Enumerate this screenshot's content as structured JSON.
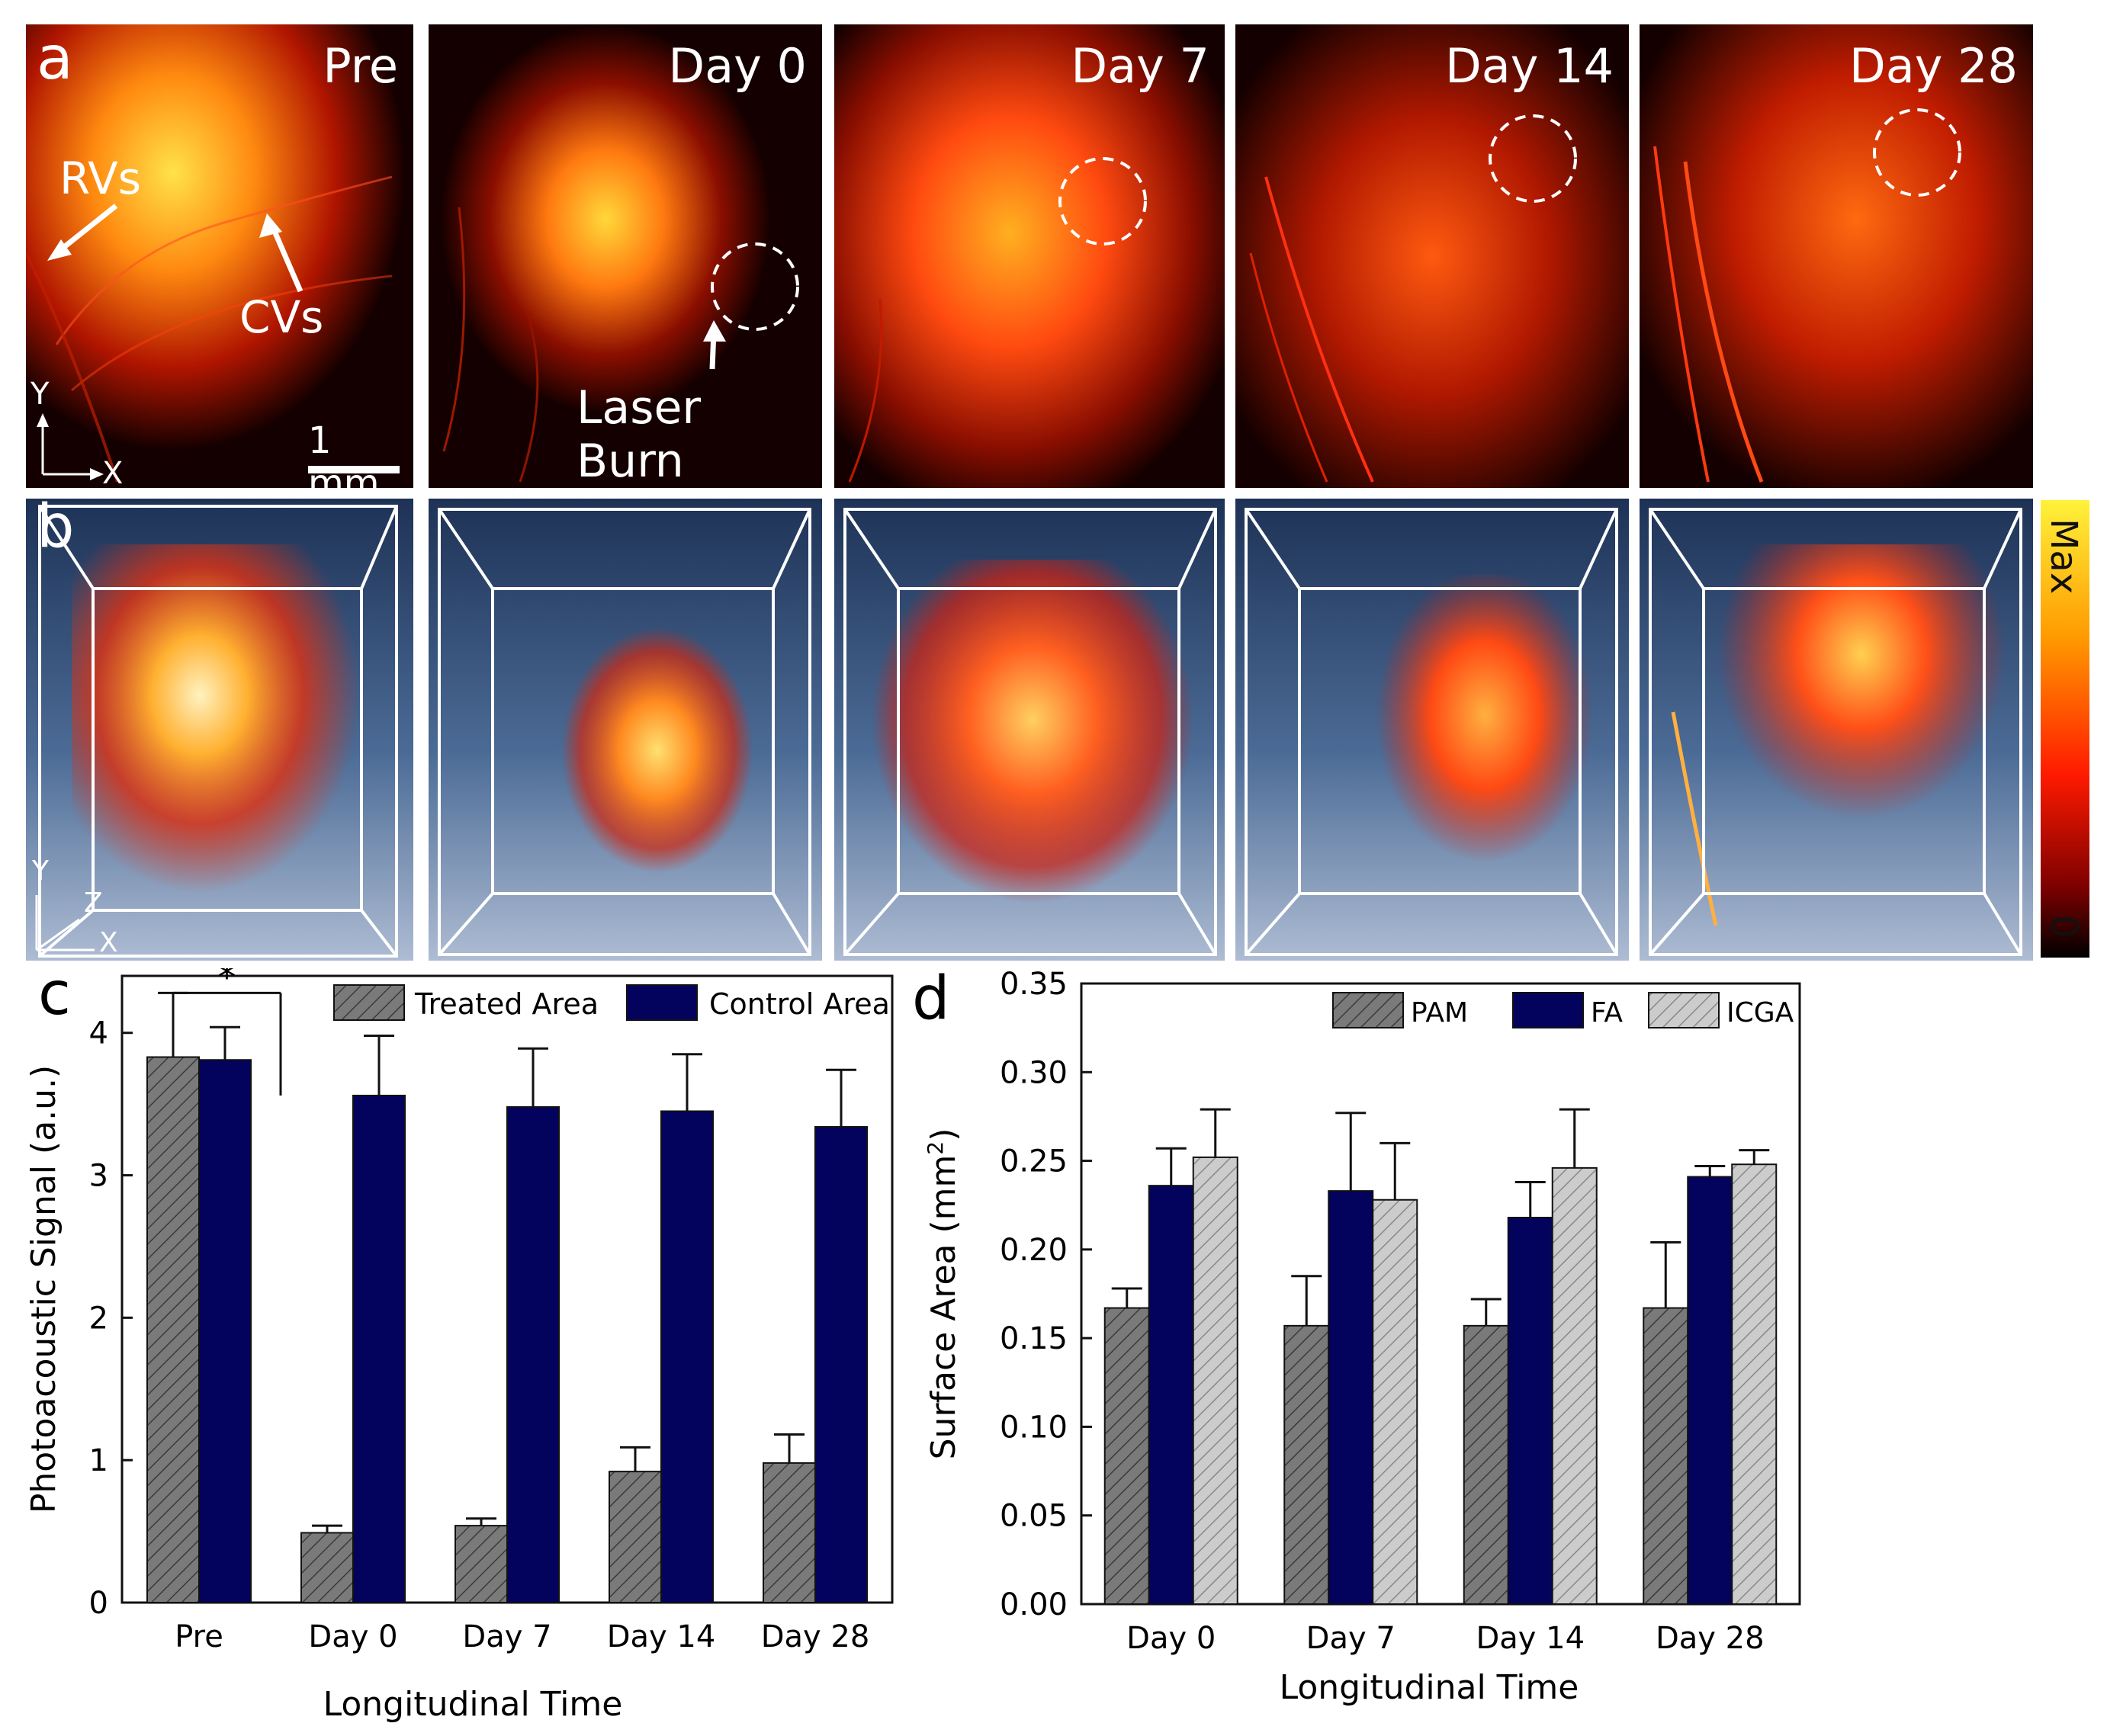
{
  "panel_a": {
    "label": "a",
    "titles": [
      "Pre",
      "Day 0",
      "Day 7",
      "Day 14",
      "Day 28"
    ],
    "annotations": {
      "rvs": "RVs",
      "cvs": "CVs",
      "laser_burn": "Laser Burn",
      "scale": "1 mm",
      "axis_y": "Y",
      "axis_x": "X"
    }
  },
  "panel_b": {
    "label": "b",
    "axis_y": "Y",
    "axis_z": "Z",
    "axis_x": "X",
    "colorbar": {
      "max": "Max",
      "min": "0",
      "colors": [
        "#fff23a",
        "#ff9a00",
        "#ff1a00",
        "#7a0000",
        "#000000"
      ]
    }
  },
  "colors": {
    "treated": "#7a7a7a",
    "control": "#03035e",
    "icga": "#c8c8c8"
  },
  "chart_data": [
    {
      "type": "bar",
      "label": "c",
      "title": "",
      "xlabel": "Longitudinal Time",
      "ylabel": "Photoacoustic Signal (a.u.)",
      "ylim": [
        0,
        4.4
      ],
      "yticks": [
        "0",
        "1",
        "2",
        "3",
        "4"
      ],
      "categories": [
        "Pre",
        "Day 0",
        "Day 7",
        "Day 14",
        "Day 28"
      ],
      "series": [
        {
          "name": "Treated Area",
          "values": [
            3.83,
            0.49,
            0.54,
            0.92,
            0.98
          ],
          "errors": [
            0.45,
            0.05,
            0.05,
            0.17,
            0.2
          ]
        },
        {
          "name": "Control Area",
          "values": [
            3.81,
            3.56,
            3.48,
            3.45,
            3.34
          ],
          "errors": [
            0.23,
            0.42,
            0.41,
            0.4,
            0.4
          ]
        }
      ],
      "significance": "*",
      "legend": "top-right"
    },
    {
      "type": "bar",
      "label": "d",
      "title": "",
      "xlabel": "Longitudinal Time",
      "ylabel_main": "Surface Area (mm",
      "ylabel_sup": "2",
      "ylabel_end": ")",
      "ylim": [
        0,
        0.35
      ],
      "yticks": [
        "0.00",
        "0.05",
        "0.10",
        "0.15",
        "0.20",
        "0.25",
        "0.30",
        "0.35"
      ],
      "categories": [
        "Day 0",
        "Day 7",
        "Day 14",
        "Day 28"
      ],
      "series": [
        {
          "name": "PAM",
          "values": [
            0.167,
            0.157,
            0.157,
            0.167
          ],
          "errors": [
            0.011,
            0.028,
            0.015,
            0.037
          ]
        },
        {
          "name": "FA",
          "values": [
            0.236,
            0.233,
            0.218,
            0.241
          ],
          "errors": [
            0.021,
            0.044,
            0.02,
            0.006
          ]
        },
        {
          "name": "ICGA",
          "values": [
            0.252,
            0.228,
            0.246,
            0.248
          ],
          "errors": [
            0.027,
            0.032,
            0.033,
            0.008
          ]
        }
      ],
      "legend": "top-right"
    }
  ]
}
